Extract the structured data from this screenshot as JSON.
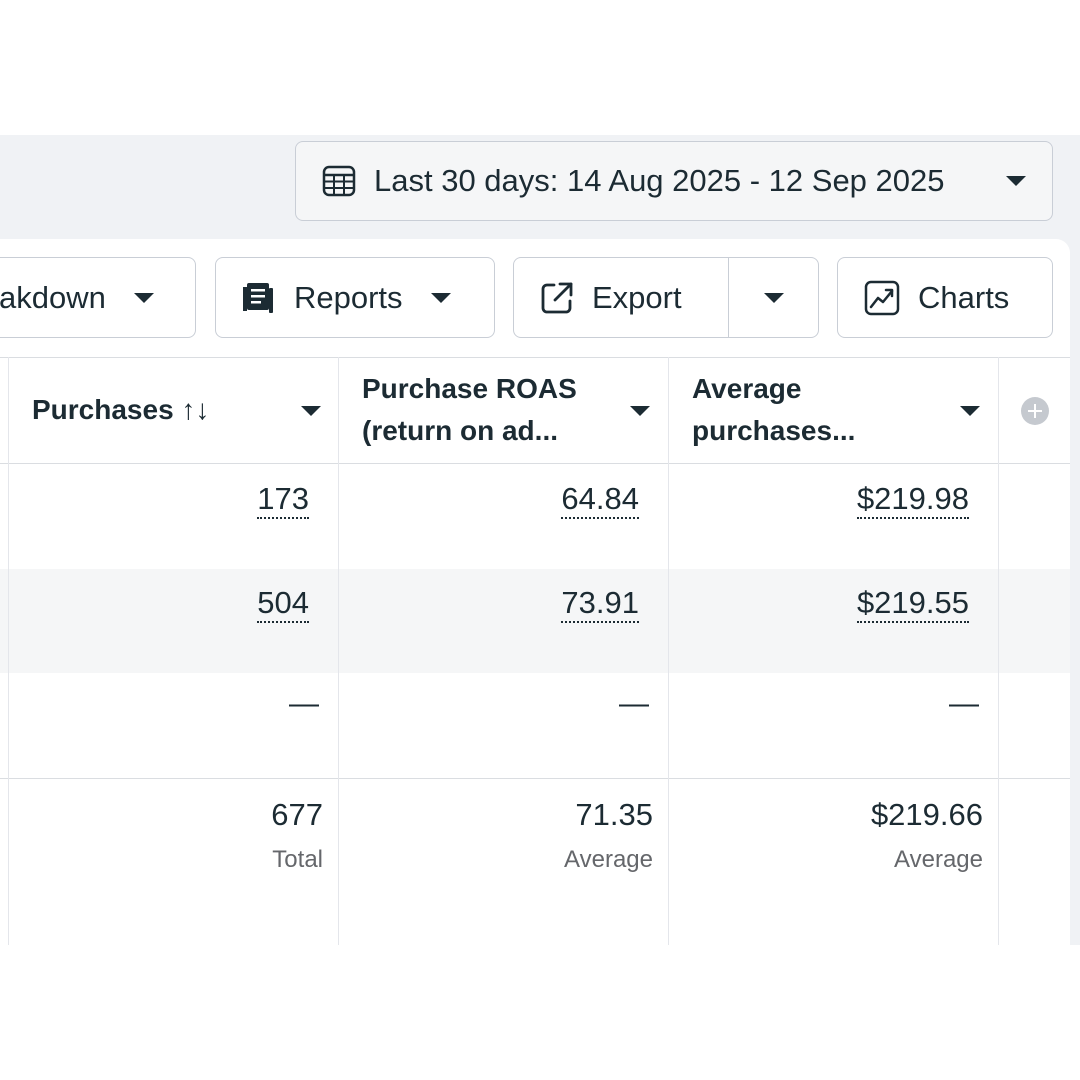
{
  "date_range": {
    "label": "Last 30 days: 14 Aug 2025 - 12 Sep 2025",
    "icon": "calendar-icon"
  },
  "toolbar": {
    "breakdown_label": "akdown",
    "reports_label": "Reports",
    "export_label": "Export",
    "charts_label": "Charts"
  },
  "table": {
    "columns": [
      {
        "title": "Purchases ↑↓"
      },
      {
        "title_line1": "Purchase ROAS",
        "title_line2": "(return on ad..."
      },
      {
        "title_line1": "Average",
        "title_line2": "purchases..."
      }
    ],
    "rows": [
      {
        "purchases": "173",
        "roas": "64.84",
        "avg": "$219.98"
      },
      {
        "purchases": "504",
        "roas": "73.91",
        "avg": "$219.55"
      },
      {
        "purchases": "—",
        "roas": "—",
        "avg": "—"
      }
    ],
    "totals": {
      "purchases": "677",
      "purchases_sub": "Total",
      "roas": "71.35",
      "roas_sub": "Average",
      "avg": "$219.66",
      "avg_sub": "Average"
    }
  },
  "colors": {
    "text": "#1c2b33",
    "muted": "#65676b",
    "border": "#c9ced6",
    "stripe": "#f5f6f7",
    "background": "#f0f2f5"
  }
}
